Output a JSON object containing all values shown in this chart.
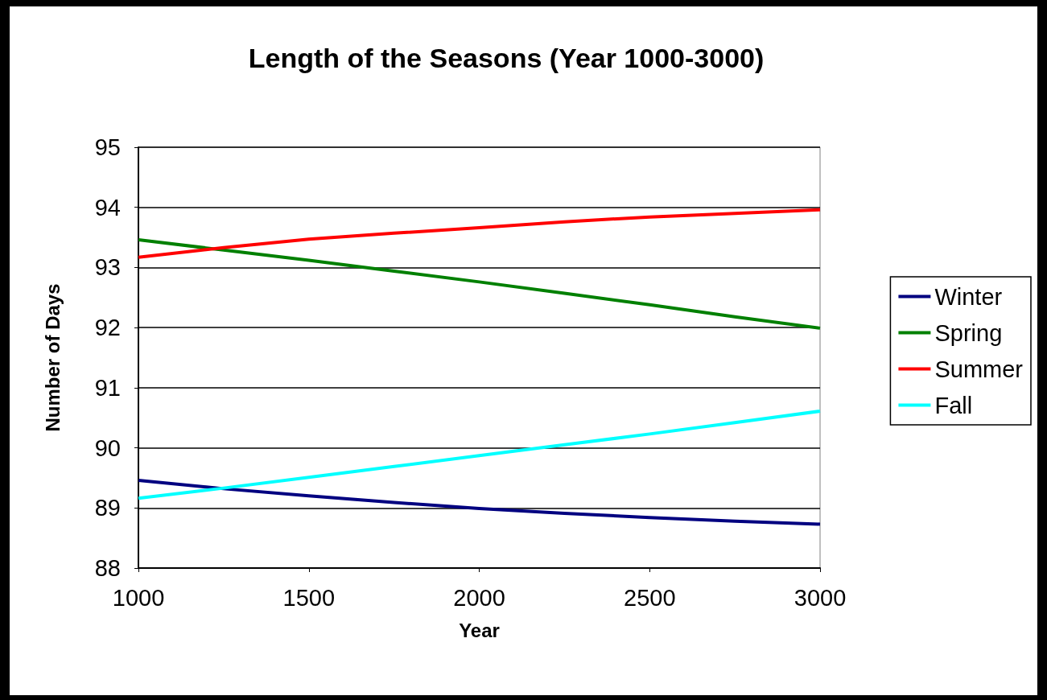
{
  "chart_data": {
    "type": "line",
    "title": "Length of the Seasons (Year 1000-3000)",
    "xlabel": "Year",
    "ylabel": "Number of Days",
    "x": [
      1000,
      1250,
      1500,
      1750,
      2000,
      2250,
      2500,
      2750,
      3000
    ],
    "series": [
      {
        "name": "Winter",
        "color": "#000080",
        "values": [
          89.46,
          89.32,
          89.2,
          89.09,
          88.99,
          88.91,
          88.84,
          88.78,
          88.73
        ]
      },
      {
        "name": "Spring",
        "color": "#008000",
        "values": [
          93.46,
          93.29,
          93.12,
          92.94,
          92.76,
          92.57,
          92.38,
          92.18,
          91.99
        ]
      },
      {
        "name": "Summer",
        "color": "#ff0000",
        "values": [
          93.17,
          93.33,
          93.47,
          93.57,
          93.66,
          93.76,
          93.84,
          93.9,
          93.96
        ]
      },
      {
        "name": "Fall",
        "color": "#00ffff",
        "values": [
          89.16,
          89.33,
          89.51,
          89.69,
          89.87,
          90.05,
          90.23,
          90.42,
          90.61
        ]
      }
    ],
    "xlim": [
      1000,
      3000
    ],
    "xticks": [
      1000,
      1500,
      2000,
      2500,
      3000
    ],
    "ylim": [
      88,
      95
    ],
    "yticks": [
      88,
      89,
      90,
      91,
      92,
      93,
      94,
      95
    ],
    "grid": "y",
    "legend": "right",
    "marker": "none",
    "line_style": "solid"
  }
}
